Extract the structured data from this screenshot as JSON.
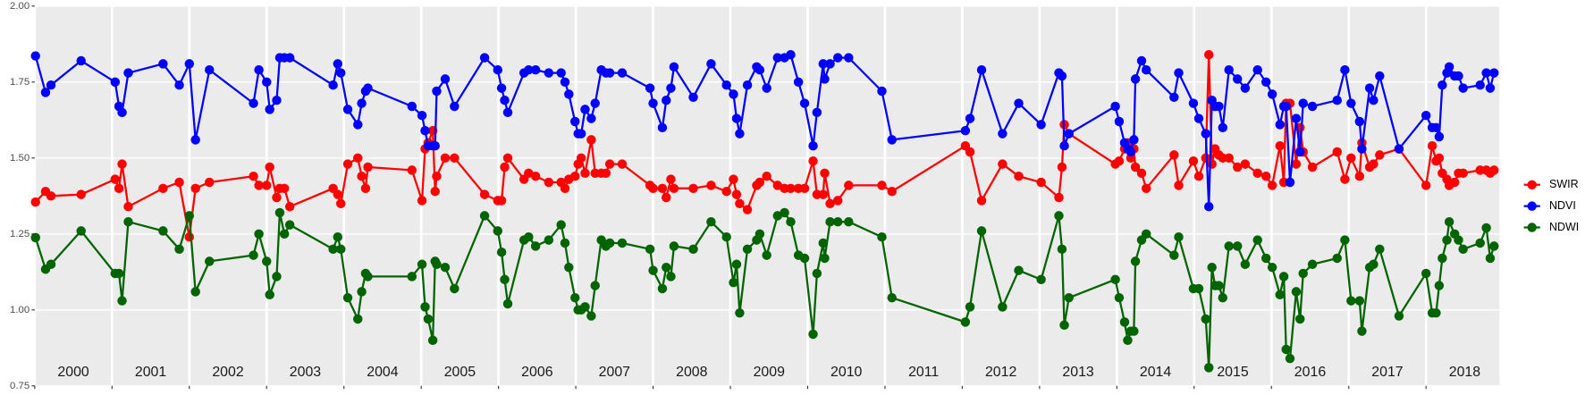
{
  "chart_data": {
    "type": "line",
    "x": [
      2000.01,
      2000.14,
      2000.21,
      2000.6,
      2001.04,
      2001.09,
      2001.13,
      2001.21,
      2001.66,
      2001.87,
      2002.0,
      2002.08,
      2002.26,
      2002.83,
      2002.9,
      2003.0,
      2003.04,
      2003.13,
      2003.17,
      2003.23,
      2003.3,
      2003.86,
      2003.92,
      2003.96,
      2004.05,
      2004.18,
      2004.23,
      2004.28,
      2004.31,
      2004.88,
      2005.01,
      2005.05,
      2005.09,
      2005.15,
      2005.18,
      2005.2,
      2005.31,
      2005.43,
      2005.82,
      2005.99,
      2006.04,
      2006.08,
      2006.12,
      2006.33,
      2006.39,
      2006.48,
      2006.65,
      2006.81,
      2006.86,
      2006.91,
      2006.99,
      2007.03,
      2007.07,
      2007.12,
      2007.2,
      2007.25,
      2007.33,
      2007.39,
      2007.44,
      2007.6,
      2007.96,
      2008.0,
      2008.12,
      2008.17,
      2008.23,
      2008.27,
      2008.52,
      2008.75,
      2008.95,
      2009.04,
      2009.08,
      2009.12,
      2009.22,
      2009.34,
      2009.38,
      2009.47,
      2009.61,
      2009.7,
      2009.78,
      2009.88,
      2009.96,
      2010.07,
      2010.12,
      2010.2,
      2010.22,
      2010.29,
      2010.39,
      2010.53,
      2010.96,
      2011.09,
      2012.04,
      2012.1,
      2012.25,
      2012.52,
      2012.73,
      2013.02,
      2013.25,
      2013.29,
      2013.32,
      2013.38,
      2013.98,
      2014.03,
      2014.1,
      2014.14,
      2014.18,
      2014.22,
      2014.24,
      2014.32,
      2014.38,
      2014.74,
      2014.8,
      2014.99,
      2015.06,
      2015.15,
      2015.19,
      2015.23,
      2015.27,
      2015.32,
      2015.37,
      2015.45,
      2015.56,
      2015.66,
      2015.82,
      2015.93,
      2016.01,
      2016.11,
      2016.16,
      2016.19,
      2016.24,
      2016.32,
      2016.37,
      2016.41,
      2016.53,
      2016.85,
      2016.95,
      2017.03,
      2017.14,
      2017.17,
      2017.27,
      2017.32,
      2017.4,
      2017.65,
      2018.0,
      2018.08,
      2018.13,
      2018.17,
      2018.21,
      2018.27,
      2018.3,
      2018.37,
      2018.42,
      2018.48,
      2018.7,
      2018.78,
      2018.83,
      2018.88
    ],
    "series": [
      {
        "name": "SWIR",
        "color": "#ff0000",
        "values": [
          1.355,
          1.39,
          1.375,
          1.38,
          1.43,
          1.4,
          1.48,
          1.34,
          1.4,
          1.42,
          1.24,
          1.4,
          1.42,
          1.44,
          1.41,
          1.41,
          1.47,
          1.37,
          1.4,
          1.4,
          1.34,
          1.4,
          1.38,
          1.35,
          1.48,
          1.5,
          1.44,
          1.4,
          1.47,
          1.46,
          1.36,
          1.53,
          1.55,
          1.59,
          1.39,
          1.44,
          1.5,
          1.5,
          1.38,
          1.36,
          1.36,
          1.47,
          1.5,
          1.43,
          1.45,
          1.44,
          1.42,
          1.42,
          1.4,
          1.43,
          1.44,
          1.48,
          1.5,
          1.45,
          1.56,
          1.45,
          1.45,
          1.45,
          1.48,
          1.48,
          1.41,
          1.4,
          1.4,
          1.37,
          1.43,
          1.4,
          1.4,
          1.41,
          1.39,
          1.43,
          1.38,
          1.35,
          1.33,
          1.41,
          1.42,
          1.44,
          1.41,
          1.4,
          1.4,
          1.4,
          1.4,
          1.49,
          1.38,
          1.38,
          1.45,
          1.35,
          1.36,
          1.41,
          1.41,
          1.39,
          1.54,
          1.52,
          1.36,
          1.48,
          1.44,
          1.42,
          1.37,
          1.47,
          1.61,
          1.58,
          1.48,
          1.49,
          1.53,
          1.55,
          1.5,
          1.53,
          1.47,
          1.45,
          1.4,
          1.51,
          1.41,
          1.49,
          1.44,
          1.5,
          1.84,
          1.48,
          1.53,
          1.51,
          1.5,
          1.5,
          1.47,
          1.48,
          1.45,
          1.44,
          1.41,
          1.54,
          1.42,
          1.68,
          1.68,
          1.48,
          1.6,
          1.52,
          1.47,
          1.52,
          1.43,
          1.5,
          1.44,
          1.55,
          1.47,
          1.48,
          1.51,
          1.53,
          1.41,
          1.54,
          1.49,
          1.5,
          1.45,
          1.43,
          1.41,
          1.42,
          1.45,
          1.45,
          1.46,
          1.46,
          1.45,
          1.46
        ]
      },
      {
        "name": "NDVI",
        "color": "#0000ff",
        "values": [
          1.836,
          1.716,
          1.74,
          1.82,
          1.75,
          1.67,
          1.65,
          1.78,
          1.81,
          1.74,
          1.81,
          1.56,
          1.79,
          1.68,
          1.79,
          1.75,
          1.66,
          1.69,
          1.83,
          1.83,
          1.83,
          1.74,
          1.81,
          1.78,
          1.66,
          1.61,
          1.68,
          1.72,
          1.73,
          1.67,
          1.64,
          1.59,
          1.54,
          1.54,
          1.54,
          1.72,
          1.76,
          1.67,
          1.83,
          1.79,
          1.73,
          1.69,
          1.65,
          1.78,
          1.79,
          1.79,
          1.78,
          1.78,
          1.75,
          1.71,
          1.62,
          1.58,
          1.58,
          1.66,
          1.63,
          1.68,
          1.79,
          1.78,
          1.78,
          1.78,
          1.73,
          1.68,
          1.6,
          1.69,
          1.73,
          1.8,
          1.7,
          1.81,
          1.74,
          1.71,
          1.63,
          1.58,
          1.74,
          1.8,
          1.79,
          1.73,
          1.83,
          1.83,
          1.84,
          1.75,
          1.68,
          1.54,
          1.65,
          1.81,
          1.76,
          1.81,
          1.83,
          1.83,
          1.72,
          1.56,
          1.59,
          1.63,
          1.79,
          1.58,
          1.68,
          1.61,
          1.78,
          1.77,
          1.54,
          1.58,
          1.67,
          1.62,
          1.55,
          1.53,
          1.52,
          1.56,
          1.76,
          1.82,
          1.79,
          1.7,
          1.78,
          1.68,
          1.63,
          1.58,
          1.34,
          1.69,
          1.67,
          1.67,
          1.6,
          1.79,
          1.76,
          1.73,
          1.79,
          1.75,
          1.71,
          1.61,
          1.67,
          1.67,
          1.42,
          1.63,
          1.52,
          1.68,
          1.67,
          1.69,
          1.79,
          1.68,
          1.62,
          1.53,
          1.73,
          1.69,
          1.77,
          1.53,
          1.64,
          1.6,
          1.6,
          1.57,
          1.74,
          1.78,
          1.8,
          1.77,
          1.77,
          1.73,
          1.74,
          1.78,
          1.73,
          1.78
        ]
      },
      {
        "name": "NDWI",
        "color": "#006400",
        "values": [
          1.238,
          1.134,
          1.15,
          1.26,
          1.12,
          1.12,
          1.03,
          1.29,
          1.26,
          1.2,
          1.31,
          1.06,
          1.16,
          1.18,
          1.25,
          1.16,
          1.05,
          1.11,
          1.32,
          1.25,
          1.28,
          1.2,
          1.24,
          1.2,
          1.04,
          0.97,
          1.06,
          1.12,
          1.11,
          1.11,
          1.15,
          1.01,
          0.97,
          0.9,
          1.16,
          1.15,
          1.14,
          1.07,
          1.31,
          1.26,
          1.19,
          1.1,
          1.02,
          1.23,
          1.24,
          1.21,
          1.23,
          1.28,
          1.22,
          1.14,
          1.04,
          1.0,
          1.0,
          1.01,
          0.98,
          1.08,
          1.23,
          1.21,
          1.22,
          1.22,
          1.2,
          1.13,
          1.07,
          1.14,
          1.11,
          1.21,
          1.2,
          1.29,
          1.24,
          1.09,
          1.15,
          0.99,
          1.2,
          1.23,
          1.25,
          1.18,
          1.31,
          1.32,
          1.29,
          1.18,
          1.17,
          0.92,
          1.12,
          1.22,
          1.17,
          1.29,
          1.29,
          1.29,
          1.24,
          1.04,
          0.96,
          1.01,
          1.26,
          1.01,
          1.13,
          1.1,
          1.31,
          1.2,
          0.95,
          1.04,
          1.1,
          1.04,
          0.96,
          0.9,
          0.93,
          0.93,
          1.16,
          1.23,
          1.25,
          1.18,
          1.24,
          1.07,
          1.07,
          0.97,
          0.81,
          1.14,
          1.08,
          1.08,
          1.04,
          1.21,
          1.21,
          1.15,
          1.23,
          1.17,
          1.14,
          1.05,
          1.11,
          0.87,
          0.84,
          1.06,
          0.97,
          1.12,
          1.15,
          1.17,
          1.23,
          1.03,
          1.03,
          0.93,
          1.14,
          1.15,
          1.2,
          0.98,
          1.12,
          0.99,
          0.99,
          1.08,
          1.17,
          1.23,
          1.29,
          1.25,
          1.23,
          1.2,
          1.22,
          1.27,
          1.17,
          1.21
        ]
      }
    ],
    "xlim": [
      2000,
      2018.95
    ],
    "ylim": [
      0.75,
      2.0
    ],
    "yticks": [
      {
        "value": 0.75,
        "label": "0.75"
      },
      {
        "value": 1.0,
        "label": "1.00"
      },
      {
        "value": 1.25,
        "label": "1.25"
      },
      {
        "value": 1.5,
        "label": "1.50"
      },
      {
        "value": 1.75,
        "label": "1.75"
      },
      {
        "value": 2.0,
        "label": "2.00"
      }
    ],
    "xticks": [
      2000,
      2001,
      2002,
      2003,
      2004,
      2005,
      2006,
      2007,
      2008,
      2009,
      2010,
      2011,
      2012,
      2013,
      2014,
      2015,
      2016,
      2017,
      2018
    ],
    "year_labels": [
      {
        "value": 2000.5,
        "label": "2000"
      },
      {
        "value": 2001.5,
        "label": "2001"
      },
      {
        "value": 2002.5,
        "label": "2002"
      },
      {
        "value": 2003.5,
        "label": "2003"
      },
      {
        "value": 2004.5,
        "label": "2004"
      },
      {
        "value": 2005.5,
        "label": "2005"
      },
      {
        "value": 2006.5,
        "label": "2006"
      },
      {
        "value": 2007.5,
        "label": "2007"
      },
      {
        "value": 2008.5,
        "label": "2008"
      },
      {
        "value": 2009.5,
        "label": "2009"
      },
      {
        "value": 2010.5,
        "label": "2010"
      },
      {
        "value": 2011.5,
        "label": "2011"
      },
      {
        "value": 2012.5,
        "label": "2012"
      },
      {
        "value": 2013.5,
        "label": "2013"
      },
      {
        "value": 2014.5,
        "label": "2014"
      },
      {
        "value": 2015.5,
        "label": "2015"
      },
      {
        "value": 2016.5,
        "label": "2016"
      },
      {
        "value": 2017.5,
        "label": "2017"
      },
      {
        "value": 2018.5,
        "label": "2018"
      }
    ],
    "grid": true,
    "legend": "right"
  }
}
